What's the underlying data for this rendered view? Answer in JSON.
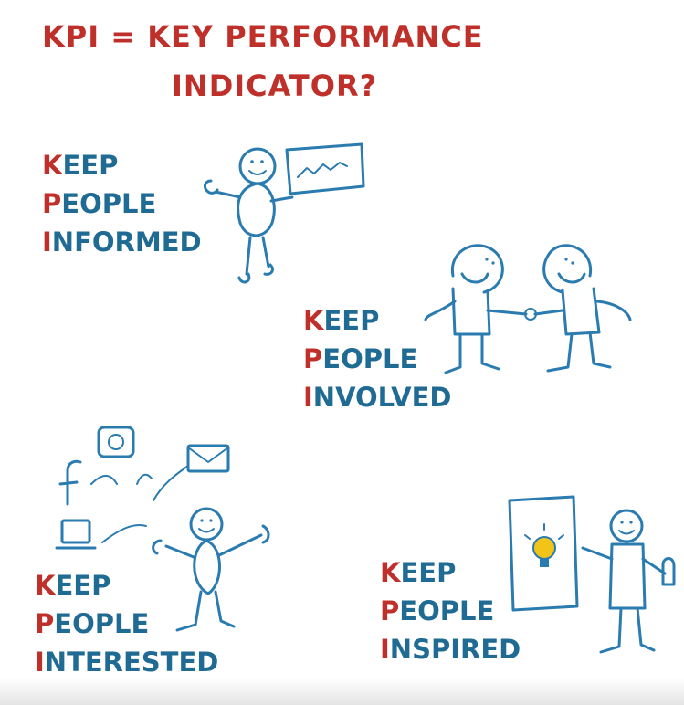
{
  "title": {
    "line1": "KPI = KEY PERFORMANCE",
    "line2": "INDICATOR?"
  },
  "groups": {
    "informed": {
      "words": [
        {
          "first": "K",
          "rest": "EEP"
        },
        {
          "first": "P",
          "rest": "EOPLE"
        },
        {
          "first": "I",
          "rest": "NFORMED"
        }
      ]
    },
    "involved": {
      "words": [
        {
          "first": "K",
          "rest": "EEP"
        },
        {
          "first": "P",
          "rest": "EOPLE"
        },
        {
          "first": "I",
          "rest": "NVOLVED"
        }
      ]
    },
    "interested": {
      "words": [
        {
          "first": "K",
          "rest": "EEP"
        },
        {
          "first": "P",
          "rest": "EOPLE"
        },
        {
          "first": "I",
          "rest": "NTERESTED"
        }
      ]
    },
    "inspired": {
      "words": [
        {
          "first": "K",
          "rest": "EEP"
        },
        {
          "first": "P",
          "rest": "EOPLE"
        },
        {
          "first": "I",
          "rest": "NSPIRED"
        }
      ]
    }
  },
  "colors": {
    "accent_red": "#c0302b",
    "ink_blue": "#1f6b93",
    "bulb_yellow": "#f2c418"
  },
  "icons": [
    "stick-figure-presenting",
    "chart-board",
    "stick-figure-handshake",
    "facebook-icon",
    "instagram-icon",
    "email-icon",
    "laptop-icon",
    "stick-figure-juggling",
    "idea-board",
    "lightbulb-icon",
    "thumbs-up-icon"
  ]
}
